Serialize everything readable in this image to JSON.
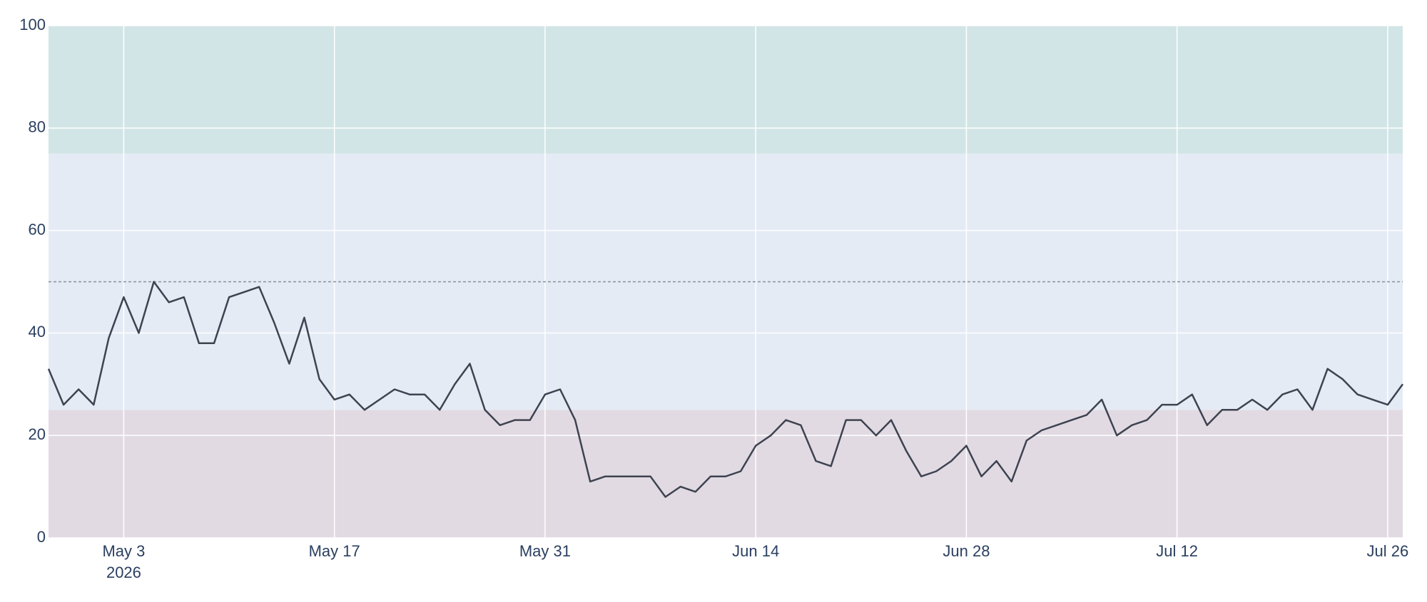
{
  "chart_data": {
    "type": "line",
    "x": [
      "2026-04-28",
      "2026-04-29",
      "2026-04-30",
      "2026-05-01",
      "2026-05-02",
      "2026-05-03",
      "2026-05-04",
      "2026-05-05",
      "2026-05-06",
      "2026-05-07",
      "2026-05-08",
      "2026-05-09",
      "2026-05-10",
      "2026-05-11",
      "2026-05-12",
      "2026-05-13",
      "2026-05-14",
      "2026-05-15",
      "2026-05-16",
      "2026-05-17",
      "2026-05-18",
      "2026-05-19",
      "2026-05-20",
      "2026-05-21",
      "2026-05-22",
      "2026-05-23",
      "2026-05-24",
      "2026-05-25",
      "2026-05-26",
      "2026-05-27",
      "2026-05-28",
      "2026-05-29",
      "2026-05-30",
      "2026-05-31",
      "2026-06-01",
      "2026-06-02",
      "2026-06-03",
      "2026-06-04",
      "2026-06-05",
      "2026-06-06",
      "2026-06-07",
      "2026-06-08",
      "2026-06-09",
      "2026-06-10",
      "2026-06-11",
      "2026-06-12",
      "2026-06-13",
      "2026-06-14",
      "2026-06-15",
      "2026-06-16",
      "2026-06-17",
      "2026-06-18",
      "2026-06-19",
      "2026-06-20",
      "2026-06-21",
      "2026-06-22",
      "2026-06-23",
      "2026-06-24",
      "2026-06-25",
      "2026-06-26",
      "2026-06-27",
      "2026-06-28",
      "2026-06-29",
      "2026-06-30",
      "2026-07-01",
      "2026-07-02",
      "2026-07-03",
      "2026-07-04",
      "2026-07-05",
      "2026-07-06",
      "2026-07-07",
      "2026-07-08",
      "2026-07-09",
      "2026-07-10",
      "2026-07-11",
      "2026-07-12",
      "2026-07-13",
      "2026-07-14",
      "2026-07-15",
      "2026-07-16",
      "2026-07-17",
      "2026-07-18",
      "2026-07-19",
      "2026-07-20",
      "2026-07-21",
      "2026-07-22",
      "2026-07-23",
      "2026-07-24",
      "2026-07-25",
      "2026-07-26",
      "2026-07-27"
    ],
    "series": [
      {
        "color": "#3d4350",
        "values": [
          33,
          26,
          29,
          26,
          39,
          47,
          40,
          50,
          46,
          47,
          38,
          38,
          47,
          48,
          49,
          42,
          34,
          43,
          31,
          27,
          28,
          25,
          27,
          29,
          28,
          28,
          25,
          30,
          34,
          25,
          22,
          23,
          23,
          28,
          29,
          23,
          11,
          12,
          12,
          12,
          12,
          8,
          10,
          9,
          12,
          12,
          13,
          18,
          20,
          23,
          22,
          15,
          14,
          23,
          23,
          20,
          23,
          17,
          12,
          13,
          15,
          18,
          12,
          15,
          11,
          19,
          21,
          22,
          23,
          24,
          27,
          20,
          22,
          23,
          26,
          26,
          28,
          22,
          25,
          25,
          27,
          25,
          28,
          29,
          25,
          33,
          31,
          28,
          27,
          26,
          30
        ]
      }
    ],
    "xlim": [
      "2026-04-28",
      "2026-07-27"
    ],
    "xticks": [
      {
        "value": "2026-05-03",
        "label": "May 3",
        "year": "2026"
      },
      {
        "value": "2026-05-17",
        "label": "May 17"
      },
      {
        "value": "2026-05-31",
        "label": "May 31"
      },
      {
        "value": "2026-06-14",
        "label": "Jun 14"
      },
      {
        "value": "2026-06-28",
        "label": "Jun 28"
      },
      {
        "value": "2026-07-12",
        "label": "Jul 12"
      },
      {
        "value": "2026-07-26",
        "label": "Jul 26"
      }
    ],
    "ylim": [
      0,
      100
    ],
    "yticks": [
      0,
      20,
      40,
      60,
      80,
      100
    ],
    "grid": true,
    "bands": [
      {
        "from": 0,
        "to": 25,
        "color": "#e2dae3"
      },
      {
        "from": 25,
        "to": 75,
        "color": "#e5ebf5"
      },
      {
        "from": 75,
        "to": 100,
        "color": "#d2e5e6"
      }
    ],
    "reference_line": {
      "value": 50,
      "color": "#8a8f9c"
    }
  }
}
